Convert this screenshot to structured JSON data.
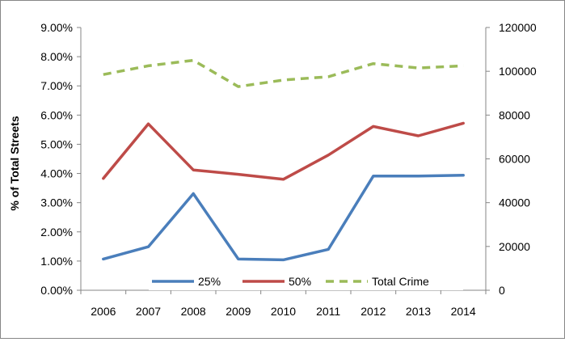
{
  "chart_data": {
    "type": "line",
    "title": "",
    "ylabel": "% of Total Streets",
    "y2label": "",
    "xlabel": "",
    "categories": [
      "2006",
      "2007",
      "2008",
      "2009",
      "2010",
      "2011",
      "2012",
      "2013",
      "2014"
    ],
    "ylim": [
      0,
      0.09
    ],
    "y2lim": [
      0,
      120000
    ],
    "y_ticks": [
      "0.00%",
      "1.00%",
      "2.00%",
      "3.00%",
      "4.00%",
      "5.00%",
      "6.00%",
      "7.00%",
      "8.00%",
      "9.00%"
    ],
    "y2_ticks": [
      "0",
      "20000",
      "40000",
      "60000",
      "80000",
      "100000",
      "120000"
    ],
    "grid": false,
    "legend_position": "bottom-inside",
    "series": [
      {
        "name": "25%",
        "axis": "left",
        "color": "#4A7EBB",
        "dash": "solid",
        "values": [
          0.0107,
          0.0149,
          0.0331,
          0.0107,
          0.0104,
          0.014,
          0.0391,
          0.0391,
          0.0394
        ]
      },
      {
        "name": "50%",
        "axis": "left",
        "color": "#BE4B48",
        "dash": "solid",
        "values": [
          0.0383,
          0.057,
          0.0412,
          0.0397,
          0.038,
          0.0463,
          0.0561,
          0.0529,
          0.0572
        ]
      },
      {
        "name": "Total Crime",
        "axis": "right",
        "color": "#9BBB59",
        "dash": "dashed",
        "values": [
          98500,
          102500,
          105000,
          93000,
          96000,
          97500,
          103500,
          101500,
          102500
        ]
      }
    ]
  }
}
